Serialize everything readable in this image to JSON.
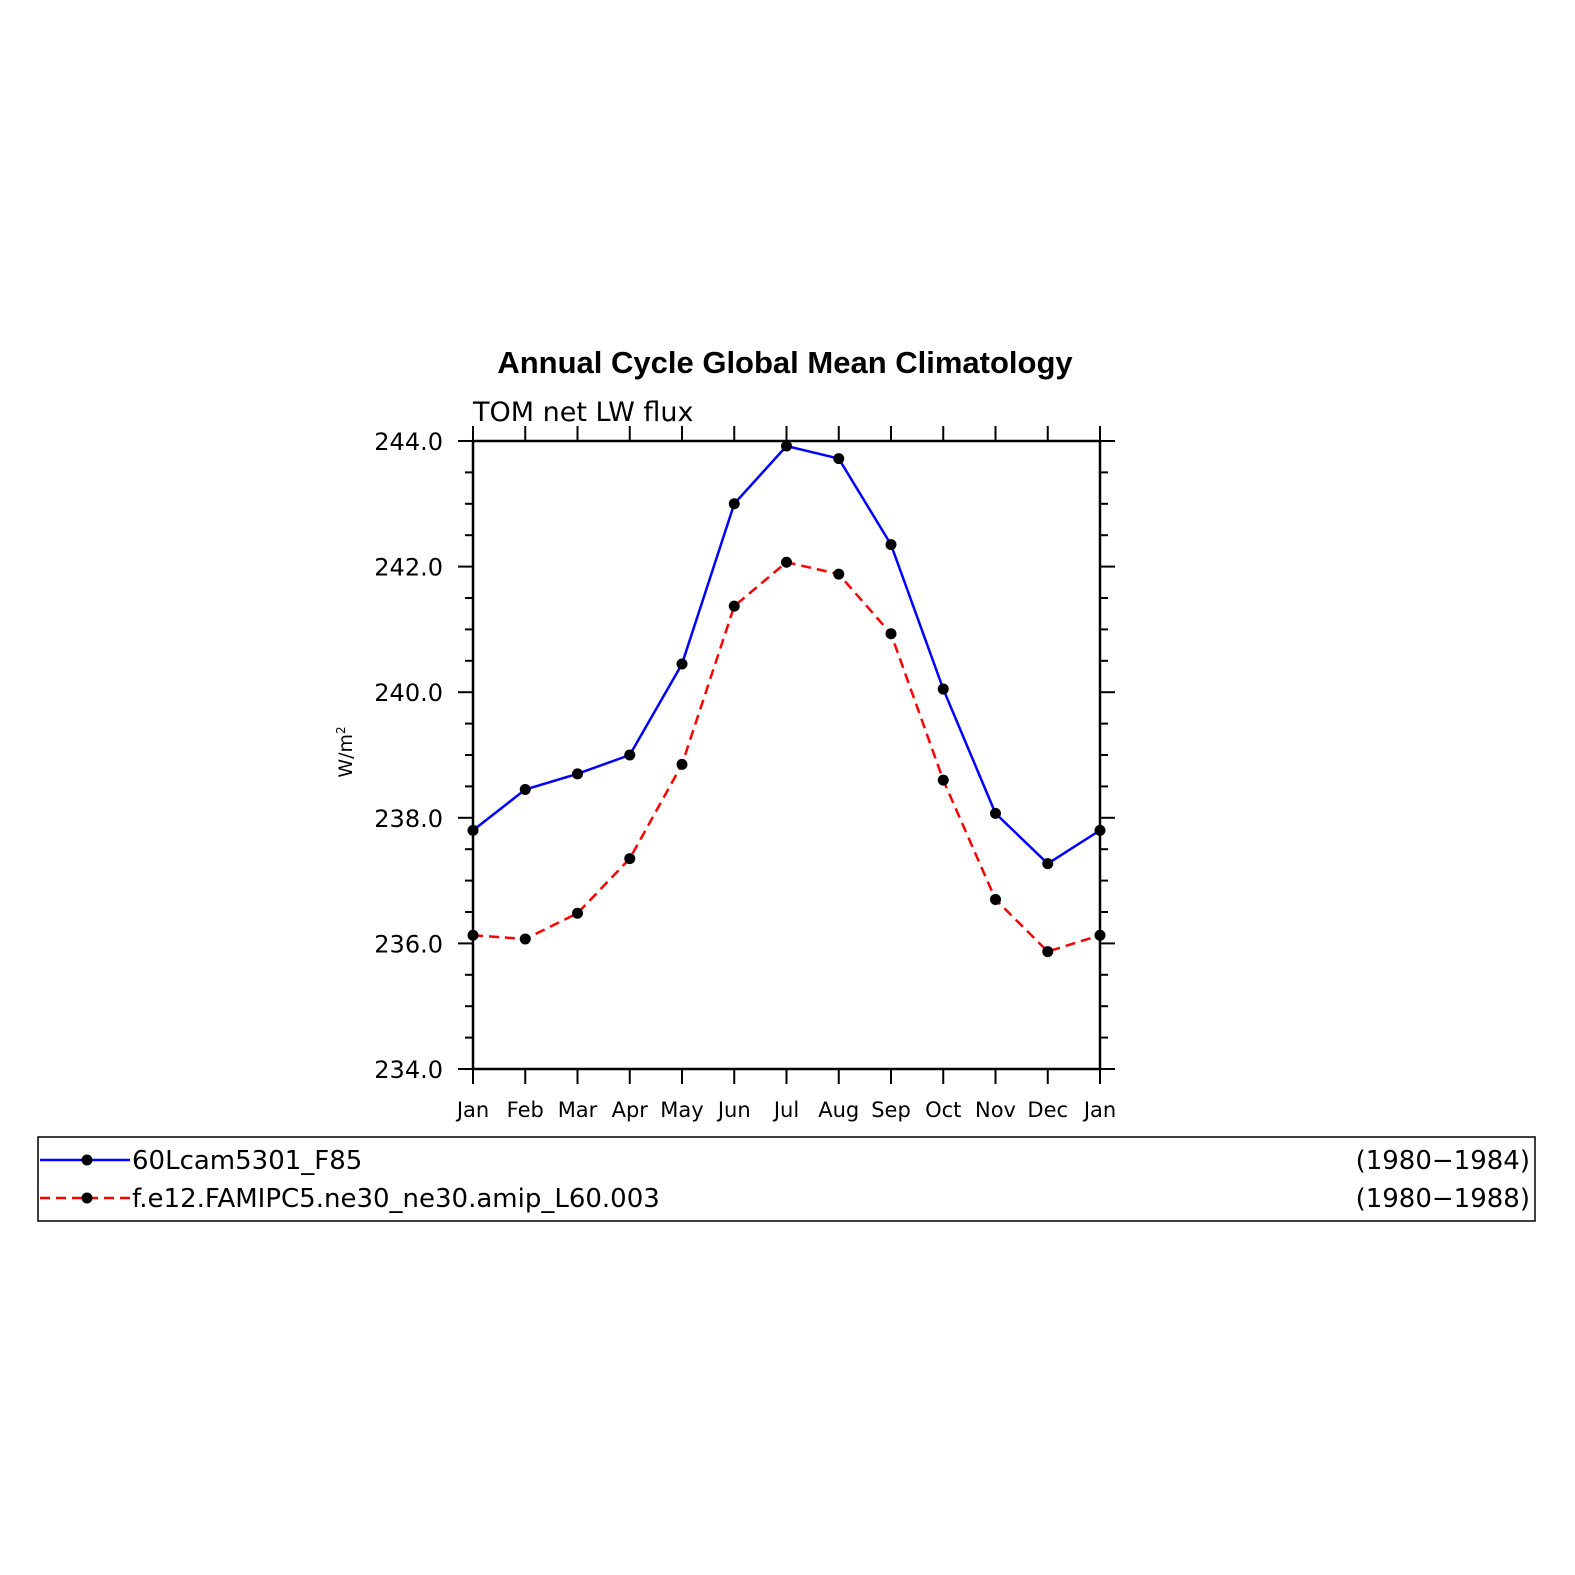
{
  "chart_data": {
    "type": "line",
    "title": "Annual Cycle Global Mean Climatology",
    "subtitle": "TOM net LW flux",
    "ylabel_base": "W/m",
    "ylabel_sup": "2",
    "xlabel": "",
    "categories": [
      "Jan",
      "Feb",
      "Mar",
      "Apr",
      "May",
      "Jun",
      "Jul",
      "Aug",
      "Sep",
      "Oct",
      "Nov",
      "Dec",
      "Jan"
    ],
    "ylim": [
      234.0,
      244.0
    ],
    "yticks": [
      234.0,
      236.0,
      238.0,
      240.0,
      242.0,
      244.0
    ],
    "ytick_labels": [
      "234.0",
      "236.0",
      "238.0",
      "240.0",
      "242.0",
      "244.0"
    ],
    "grid": false,
    "legend_position": "bottom",
    "series": [
      {
        "name": "60Lcam5301_F85",
        "period": "(1980−1984)",
        "color": "#0000ff",
        "dash": "solid",
        "values": [
          237.8,
          238.45,
          238.7,
          239.0,
          240.45,
          243.0,
          243.92,
          243.72,
          242.35,
          240.05,
          238.07,
          237.27,
          237.8
        ]
      },
      {
        "name": "f.e12.FAMIPC5.ne30_ne30.amip_L60.003",
        "period": "(1980−1988)",
        "color": "#ff0000",
        "dash": "dashed",
        "values": [
          236.13,
          236.07,
          236.48,
          237.35,
          238.85,
          241.37,
          242.07,
          241.88,
          240.93,
          238.6,
          236.7,
          235.87,
          236.13
        ]
      }
    ]
  }
}
